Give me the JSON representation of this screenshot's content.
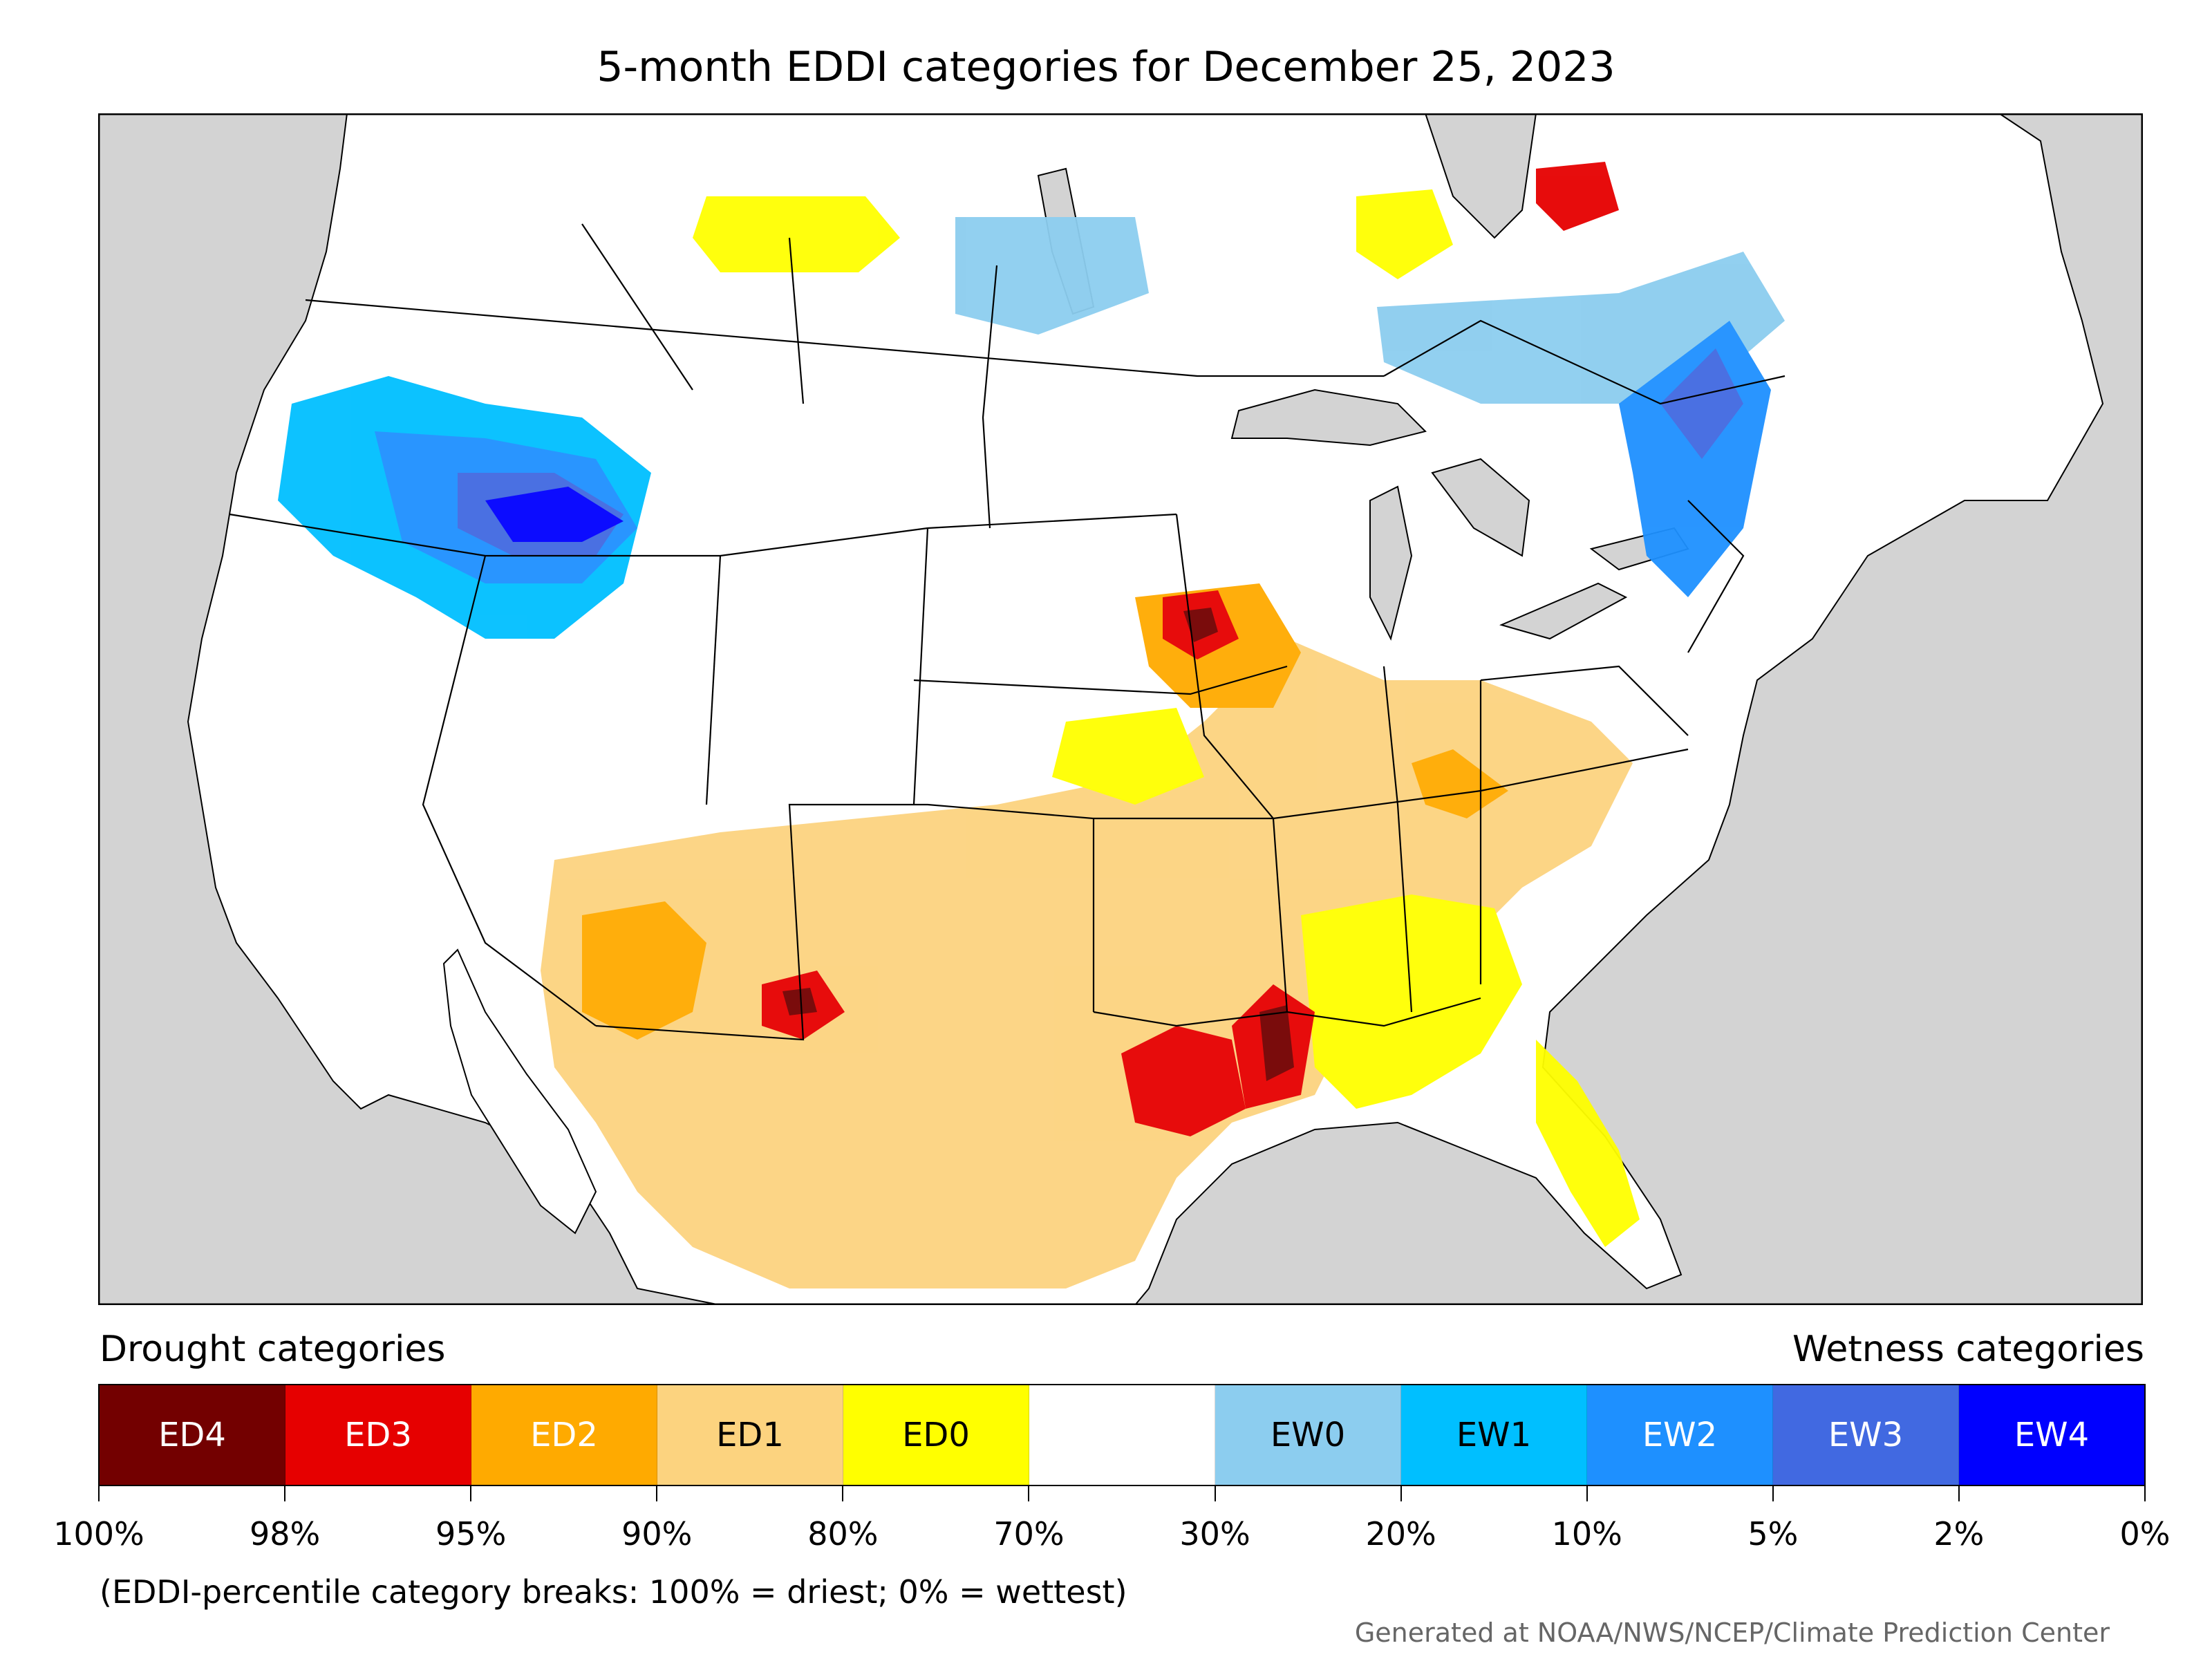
{
  "title": "5-month EDDI categories for December 25, 2023",
  "legend": {
    "drought_heading": "Drought categories",
    "wetness_heading": "Wetness categories",
    "categories": [
      {
        "label": "ED4",
        "color": "#730000",
        "text_color": "#ffffff"
      },
      {
        "label": "ED3",
        "color": "#e60000",
        "text_color": "#ffffff"
      },
      {
        "label": "ED2",
        "color": "#ffaa00",
        "text_color": "#ffffff"
      },
      {
        "label": "ED1",
        "color": "#fcd37f",
        "text_color": "#000000"
      },
      {
        "label": "ED0",
        "color": "#ffff00",
        "text_color": "#000000"
      },
      {
        "label": "",
        "color": "#ffffff",
        "text_color": "#000000"
      },
      {
        "label": "EW0",
        "color": "#8ccdef",
        "text_color": "#000000"
      },
      {
        "label": "EW1",
        "color": "#00bfff",
        "text_color": "#000000"
      },
      {
        "label": "EW2",
        "color": "#1e90ff",
        "text_color": "#ffffff"
      },
      {
        "label": "EW3",
        "color": "#4169e1",
        "text_color": "#ffffff"
      },
      {
        "label": "EW4",
        "color": "#0000ff",
        "text_color": "#ffffff"
      }
    ],
    "breaks": [
      "100%",
      "98%",
      "95%",
      "90%",
      "80%",
      "70%",
      "30%",
      "20%",
      "10%",
      "5%",
      "2%",
      "0%"
    ]
  },
  "note": "(EDDI-percentile category breaks: 100% = driest; 0% = wettest)",
  "credit": "Generated at NOAA/NWS/NCEP/Climate Prediction Center",
  "map_colors": {
    "ocean": "#d3d3d3",
    "land": "#ffffff",
    "border": "#000000"
  }
}
